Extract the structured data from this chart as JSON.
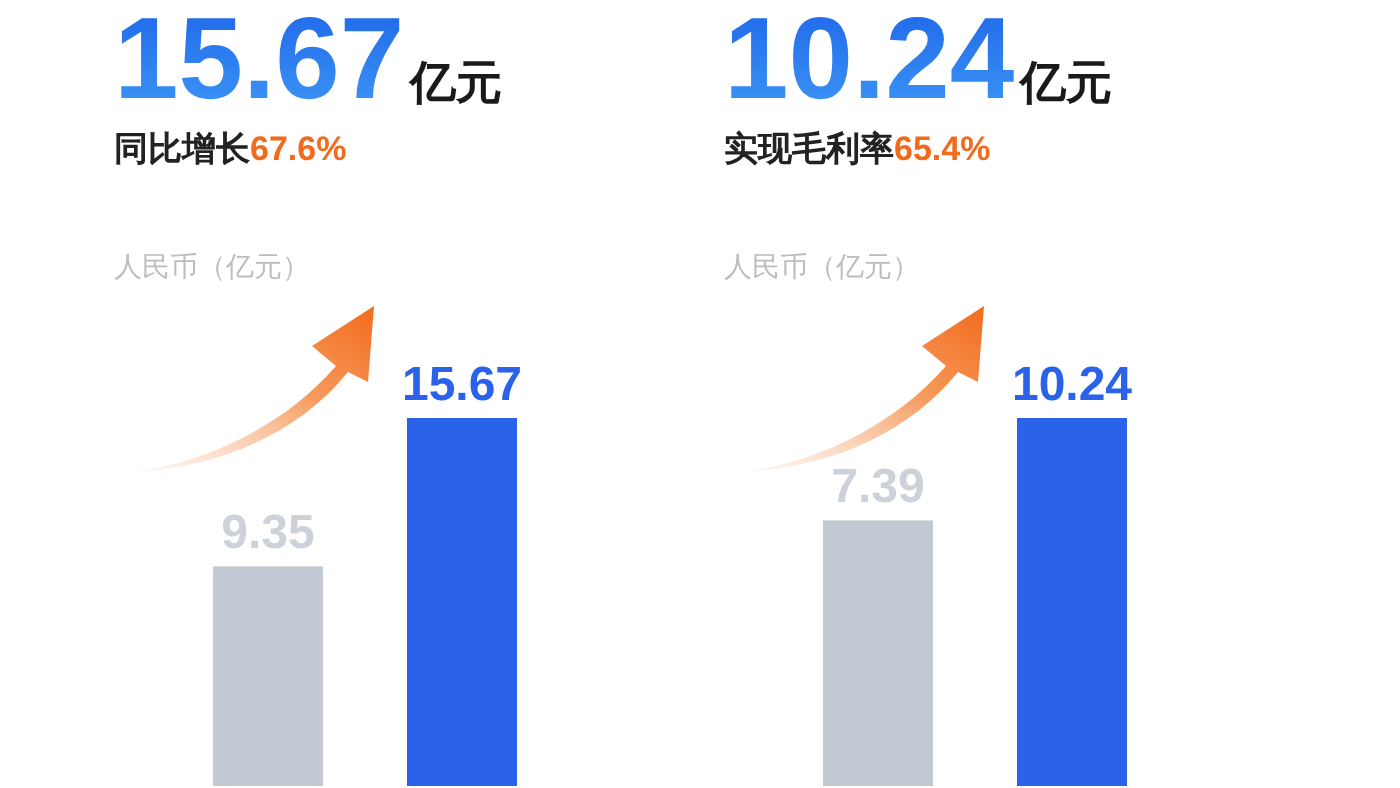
{
  "chart_data": [
    {
      "type": "bar",
      "title": "15.67亿元",
      "subtitle": "同比增长67.6%",
      "ylabel": "人民币（亿元）",
      "categories": [
        null,
        null
      ],
      "values": [
        9.35,
        15.67
      ],
      "data_labels": true,
      "colors": [
        "#c3c9d3",
        "#2a62ea"
      ]
    },
    {
      "type": "bar",
      "title": "10.24亿元",
      "subtitle": "实现毛利率65.4%",
      "ylabel": "人民币（亿元）",
      "categories": [
        null,
        null
      ],
      "values": [
        7.39,
        10.24
      ],
      "data_labels": true,
      "colors": [
        "#c3c9d3",
        "#2a62ea"
      ]
    }
  ]
}
